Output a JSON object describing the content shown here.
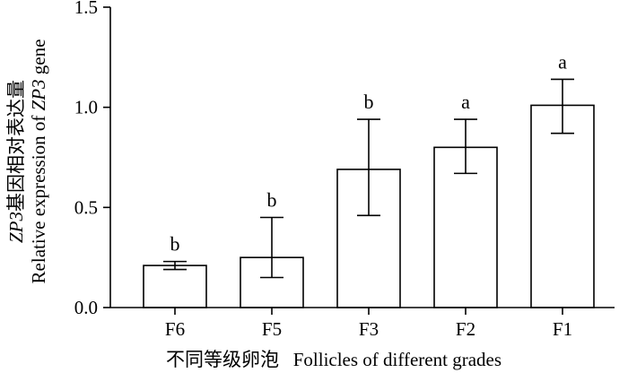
{
  "chart_data": {
    "type": "bar",
    "categories": [
      "F6",
      "F5",
      "F3",
      "F2",
      "F1"
    ],
    "values": [
      0.21,
      0.25,
      0.69,
      0.8,
      1.01
    ],
    "error_lower": [
      0.19,
      0.15,
      0.46,
      0.67,
      0.87
    ],
    "error_upper": [
      0.23,
      0.45,
      0.94,
      0.94,
      1.14
    ],
    "significance": [
      "b",
      "b",
      "b",
      "a",
      "a"
    ],
    "ylim": [
      0,
      1.5
    ],
    "yticks": [
      "0.0",
      "0.5",
      "1.0",
      "1.5"
    ],
    "ylabel_line1_parts": [
      {
        "text": "ZP3",
        "italic": true
      },
      {
        "text": "基因相对表达量",
        "italic": false
      }
    ],
    "ylabel_line2_parts": [
      {
        "text": "Relative expression of ",
        "italic": false
      },
      {
        "text": "ZP3",
        "italic": true
      },
      {
        "text": " gene",
        "italic": false
      }
    ],
    "xlabel": "不同等级卵泡   Follicles of different grades",
    "grid": false,
    "legend": "none"
  }
}
